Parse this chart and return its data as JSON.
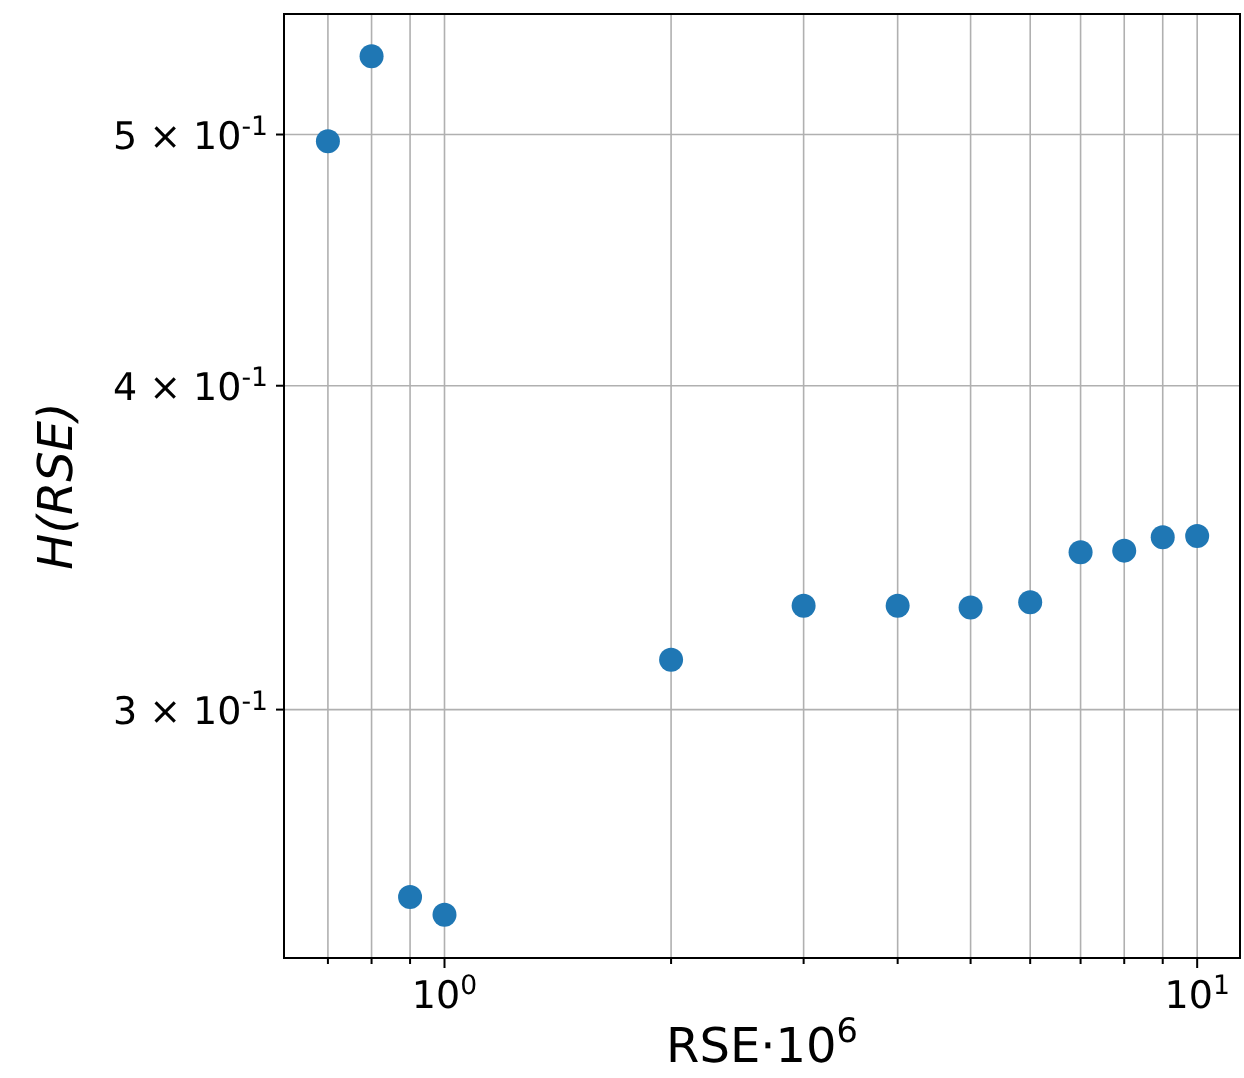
{
  "chart_data": {
    "type": "scatter",
    "xlabel": "RSE·10$^{6}$",
    "ylabel": "H(RSE)",
    "log": "xy",
    "grid": true,
    "marker": "circle",
    "x": [
      0.7,
      0.8,
      0.9,
      1,
      2,
      3,
      4,
      5,
      6,
      7,
      8,
      9,
      10
    ],
    "series": [
      {
        "color": "#1f77b4",
        "values": [
          0.497,
          0.536,
          0.254,
          0.25,
          0.3136,
          0.329,
          0.329,
          0.3285,
          0.33,
          0.345,
          0.3455,
          0.3496,
          0.35
        ]
      }
    ],
    "xlim": [
      0.612,
      11.4
    ],
    "ylim": [
      0.2406,
      0.5565
    ],
    "xticks": [
      {
        "value": 0.7,
        "label": null
      },
      {
        "value": 0.8,
        "label": null
      },
      {
        "value": 0.9,
        "label": null
      },
      {
        "value": 1,
        "label": "10$^{0}$"
      },
      {
        "value": 2,
        "label": null
      },
      {
        "value": 3,
        "label": null
      },
      {
        "value": 4,
        "label": null
      },
      {
        "value": 5,
        "label": null
      },
      {
        "value": 6,
        "label": null
      },
      {
        "value": 7,
        "label": null
      },
      {
        "value": 8,
        "label": null
      },
      {
        "value": 9,
        "label": null
      },
      {
        "value": 10,
        "label": "10$^{1}$"
      }
    ],
    "yticks": [
      {
        "value": 0.3,
        "label": "3 × 10$^{-1}$"
      },
      {
        "value": 0.4,
        "label": "4 × 10$^{-1}$"
      },
      {
        "value": 0.5,
        "label": "5 × 10$^{-1}$"
      }
    ]
  }
}
